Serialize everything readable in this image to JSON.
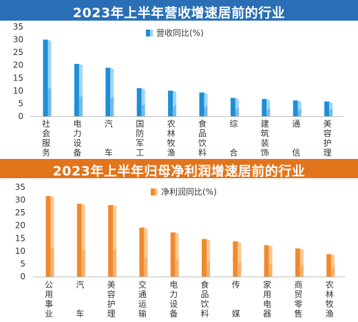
{
  "colors": {
    "banner_top": "#2a6fb6",
    "banner_bottom": "#e2741c",
    "bar_top_front": "#1f8ed4",
    "bar_top_side": "#9dd6f4",
    "bar_bottom_front": "#f0892e",
    "bar_bottom_side": "#fbc88f",
    "axis_text": "#333333",
    "grid": "#bfbfbf"
  },
  "chart_data": [
    {
      "type": "bar",
      "title": "2023年上半年营收增速居前的行业",
      "legend": "营收同比(%)",
      "legend_position": "top-center",
      "categories": [
        "社会服务",
        "电力设备",
        "汽车",
        "国防军工",
        "农林牧渔",
        "食品饮料",
        "综合",
        "建筑装饰",
        "通信",
        "美容护理"
      ],
      "values": [
        30,
        20.5,
        19,
        11,
        10,
        9.3,
        7.2,
        6.8,
        6.2,
        5.8
      ],
      "ylim": [
        0,
        35
      ],
      "yticks": [
        "0",
        "5",
        "10",
        "15",
        "20",
        "25",
        "30",
        "35"
      ],
      "grid": false
    },
    {
      "type": "bar",
      "title": "2023年上半年归母净利润增速居前的行业",
      "legend": "净利润同比(%)",
      "legend_position": "top-center",
      "categories": [
        "公用事业",
        "汽车",
        "美容护理",
        "交通运输",
        "电力设备",
        "食品饮料",
        "传媒",
        "家用电器",
        "商贸零售",
        "农林牧渔"
      ],
      "values": [
        31.5,
        28.5,
        28,
        19.2,
        17.3,
        14.7,
        13.8,
        12.3,
        11,
        8.8
      ],
      "ylim": [
        0,
        35
      ],
      "yticks": [
        "0",
        "5",
        "10",
        "15",
        "20",
        "25",
        "30",
        "35"
      ],
      "grid": false
    }
  ]
}
